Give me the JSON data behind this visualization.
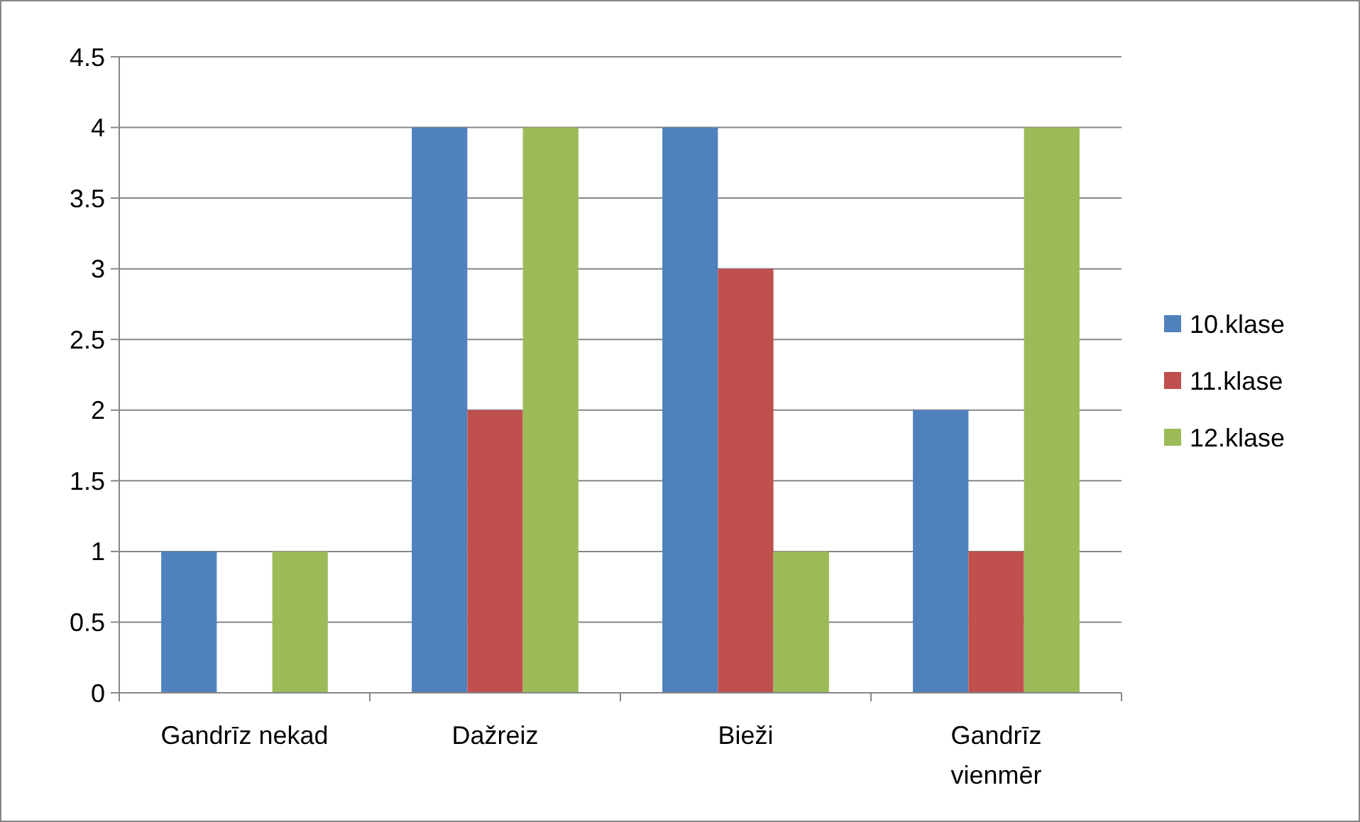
{
  "chart_data": {
    "type": "bar",
    "categories": [
      "Gandrīz nekad",
      "Dažreiz",
      "Bieži",
      "Gandrīz vienmēr"
    ],
    "series": [
      {
        "name": "10.klase",
        "color": "#4f81bd",
        "values": [
          1,
          4,
          4,
          2
        ]
      },
      {
        "name": "11.klase",
        "color": "#c0504d",
        "values": [
          0,
          2,
          3,
          1
        ]
      },
      {
        "name": "12.klase",
        "color": "#9bbb59",
        "values": [
          1,
          4,
          1,
          4
        ]
      }
    ],
    "ylim": [
      0,
      4.5
    ],
    "yticks": [
      0,
      0.5,
      1,
      1.5,
      2,
      2.5,
      3,
      3.5,
      4,
      4.5
    ],
    "grid": "y",
    "legend": "right"
  }
}
